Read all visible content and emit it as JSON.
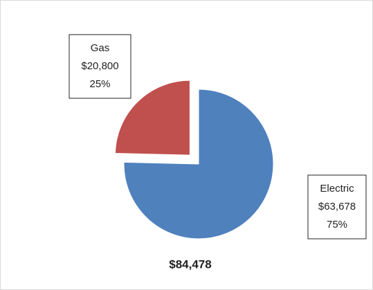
{
  "chart_data": {
    "type": "pie",
    "categories": [
      "Electric",
      "Gas"
    ],
    "values": [
      63678,
      20800
    ],
    "value_labels": [
      "$63,678",
      "$20,800"
    ],
    "percent_labels": [
      "75%",
      "25%"
    ],
    "colors": [
      "#4f81bd",
      "#c0504d"
    ],
    "exploded": [
      false,
      true
    ],
    "total_label": "$84,478"
  }
}
